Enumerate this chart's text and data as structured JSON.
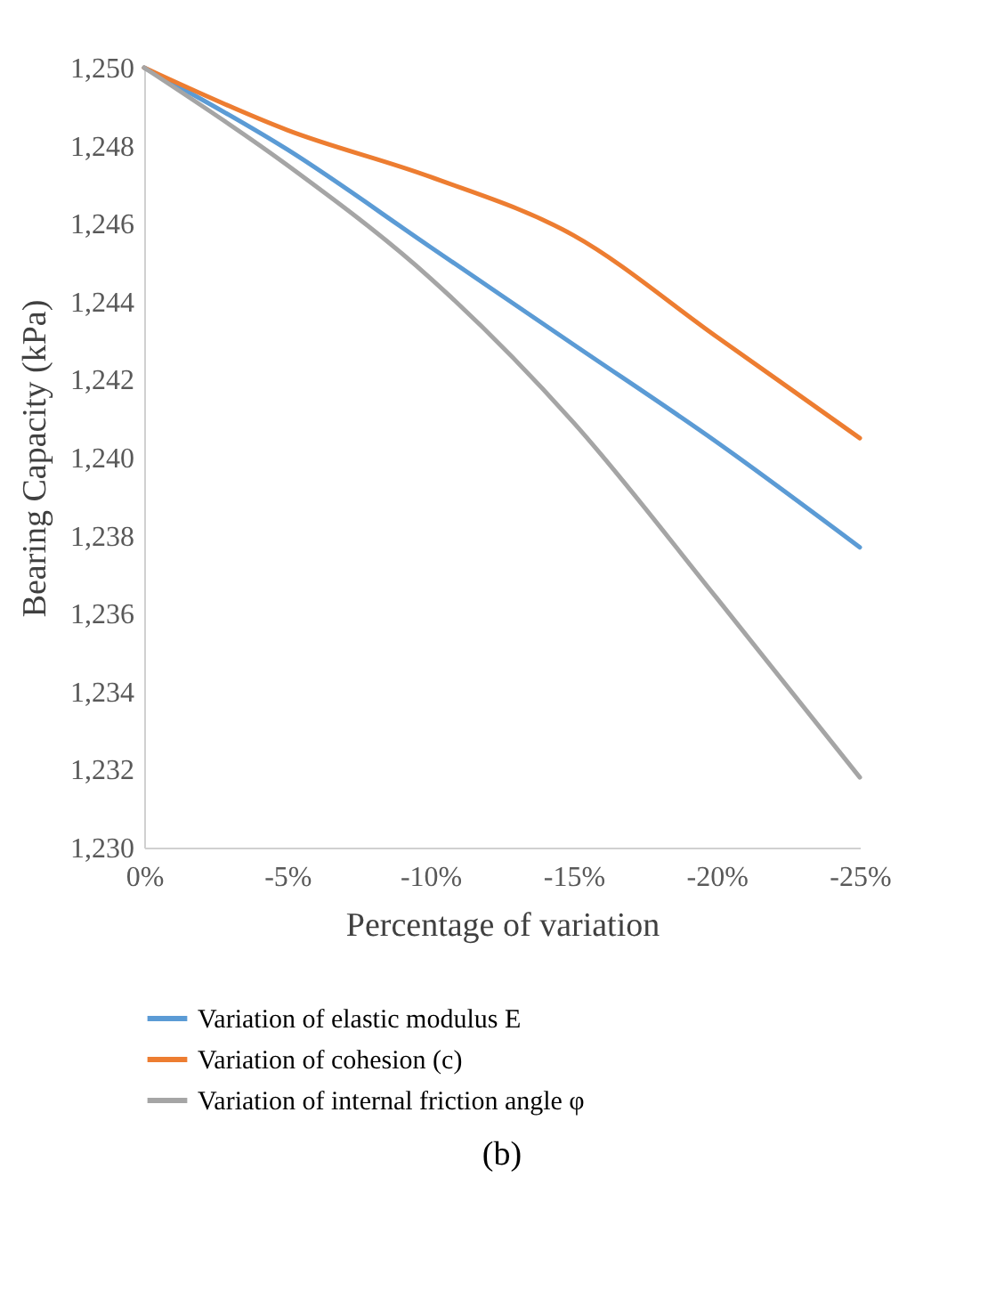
{
  "chart_data": {
    "type": "line",
    "xlabel": "Percentage of variation",
    "ylabel": "Bearing Capacity (kPa)",
    "x": [
      0,
      -5,
      -10,
      -15,
      -20,
      -25
    ],
    "xlim": [
      0,
      -25
    ],
    "xticks": [
      {
        "value": 0,
        "label": "0%"
      },
      {
        "value": -5,
        "label": "-5%"
      },
      {
        "value": -10,
        "label": "-10%"
      },
      {
        "value": -15,
        "label": "-15%"
      },
      {
        "value": -20,
        "label": "-20%"
      },
      {
        "value": -25,
        "label": "-25%"
      }
    ],
    "ylim": [
      1230,
      1250
    ],
    "yticks": [
      {
        "value": 1230,
        "label": "1,230"
      },
      {
        "value": 1232,
        "label": "1,232"
      },
      {
        "value": 1234,
        "label": "1,234"
      },
      {
        "value": 1236,
        "label": "1,236"
      },
      {
        "value": 1238,
        "label": "1,238"
      },
      {
        "value": 1240,
        "label": "1,240"
      },
      {
        "value": 1242,
        "label": "1,242"
      },
      {
        "value": 1244,
        "label": "1,244"
      },
      {
        "value": 1246,
        "label": "1,246"
      },
      {
        "value": 1248,
        "label": "1,248"
      },
      {
        "value": 1250,
        "label": "1,250"
      }
    ],
    "series": [
      {
        "name": "Variation of elastic modulus E",
        "color": "#5b9bd5",
        "values": [
          1250,
          1247.9,
          1245.4,
          1242.9,
          1240.4,
          1237.7
        ]
      },
      {
        "name": "Variation of cohesion (c)",
        "color": "#ed7d31",
        "values": [
          1250,
          1248.4,
          1247.2,
          1245.7,
          1243.1,
          1240.5
        ]
      },
      {
        "name": "Variation of internal friction angle φ",
        "color": "#a5a5a5",
        "values": [
          1250,
          1247.5,
          1244.6,
          1240.9,
          1236.4,
          1231.8
        ]
      }
    ],
    "grid": false,
    "legend": "bottom",
    "marker": "none",
    "line_style": "solid",
    "annotations": [
      "(b)"
    ]
  }
}
